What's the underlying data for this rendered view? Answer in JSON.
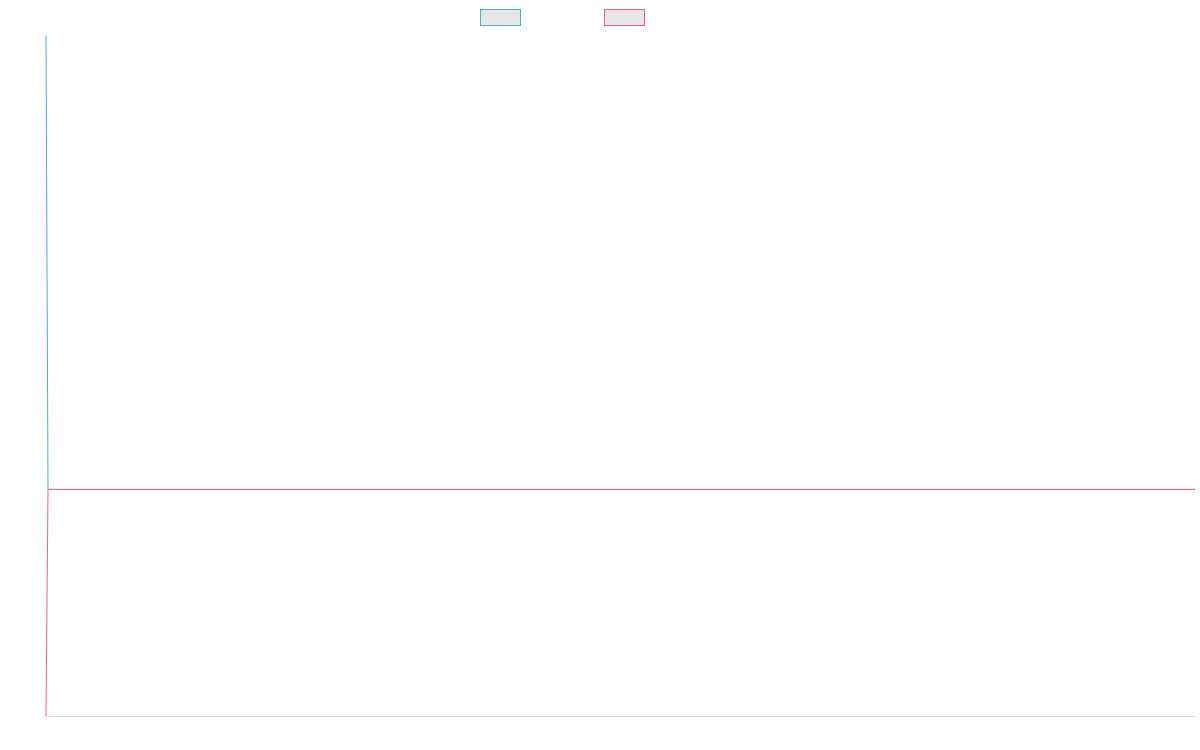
{
  "chart_data": {
    "type": "line",
    "title": "",
    "xlabel": "",
    "ylabel": "",
    "grid": false,
    "legend": {
      "position": "top-center",
      "items": [
        {
          "name": "",
          "color": "#4bb0c0"
        },
        {
          "name": "",
          "color": "#f06080"
        }
      ]
    },
    "x": [
      0,
      1
    ],
    "ylim": [
      -1,
      2
    ],
    "series": [
      {
        "name": "",
        "color": "#4bb0c0",
        "values": [
          2,
          0
        ]
      },
      {
        "name": "",
        "color": "#f06080",
        "values": [
          -1,
          0
        ]
      }
    ],
    "x_axis_color": "#e0e0e0",
    "legend_swatch_fill": "#e6e6e6",
    "extend_last_value_right": true
  }
}
